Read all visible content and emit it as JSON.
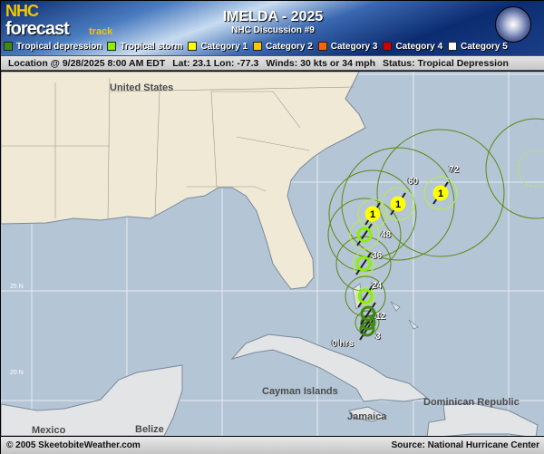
{
  "header": {
    "logo_text": "NHC forecast track",
    "title": "IMELDA - 2025",
    "subtitle": "NHC Discussion #9"
  },
  "legend": [
    {
      "label": "Tropical depression",
      "color": "#3f8a10"
    },
    {
      "label": "Tropical storm",
      "color": "#8cf000"
    },
    {
      "label": "Category 1",
      "color": "#ffff00"
    },
    {
      "label": "Category 2",
      "color": "#ffc800"
    },
    {
      "label": "Category 3",
      "color": "#ff6400"
    },
    {
      "label": "Category 4",
      "color": "#d00000"
    },
    {
      "label": "Category 5",
      "color": "#ffffff"
    }
  ],
  "status": {
    "location": "Location @ 9/28/2025 8:00 AM EDT",
    "latlon": "Lat: 23.1 Lon: -77.3",
    "winds": "Winds: 30 kts or 34 mph",
    "status": "Status: Tropical Depression"
  },
  "map": {
    "labels": {
      "us": "United States",
      "cayman": "Cayman Islands",
      "jamaica": "Jamaica",
      "dr": "Dominican Republic",
      "mexico": "Mexico",
      "belize": "Belize"
    },
    "lat_labels": [
      "25 N",
      "20 N"
    ],
    "watermark": "SkeetobiteWeather.com",
    "forecast_points": [
      {
        "hour": "0 hrs",
        "category": "Tropical depression"
      },
      {
        "hour": "3",
        "category": "Tropical depression"
      },
      {
        "hour": "12",
        "category": "Tropical depression"
      },
      {
        "hour": "24",
        "category": "Tropical storm"
      },
      {
        "hour": "36",
        "category": "Tropical storm"
      },
      {
        "hour": "48",
        "category": "Tropical storm"
      },
      {
        "hour": "",
        "category": "Category 1",
        "marker": "1"
      },
      {
        "hour": "60",
        "category": "Category 1",
        "marker": "1"
      },
      {
        "hour": "72",
        "category": "Category 1",
        "marker": "1"
      }
    ]
  },
  "footer": {
    "copyright": "© 2005 SkeetobiteWeather.com",
    "source": "Source: National Hurricane Center"
  }
}
